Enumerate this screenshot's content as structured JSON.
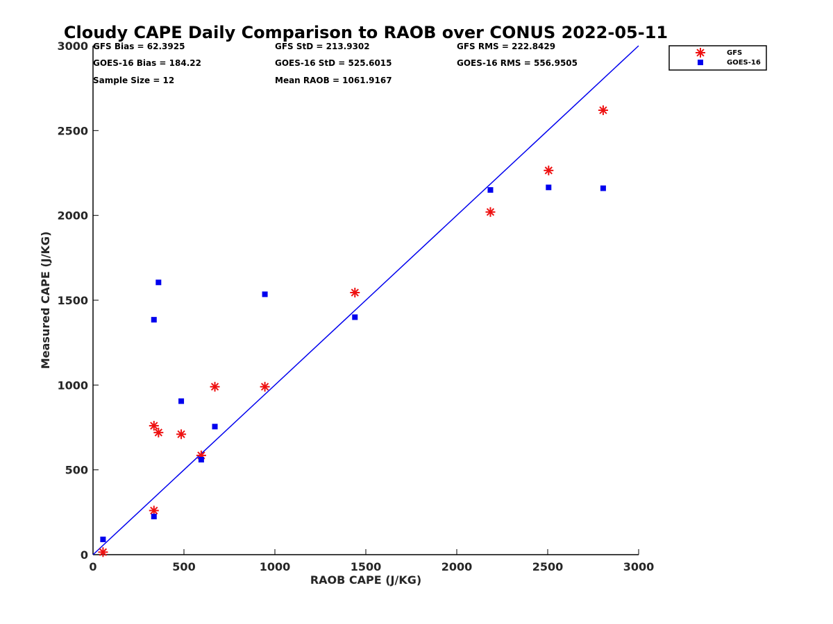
{
  "chart_data": {
    "type": "scatter",
    "title": "Cloudy CAPE Daily Comparison to RAOB over CONUS 2022-05-11",
    "xlabel": "RAOB CAPE (J/KG)",
    "ylabel": "Measured CAPE (J/KG)",
    "xlim": [
      0,
      3000
    ],
    "ylim": [
      0,
      3000
    ],
    "xticks": [
      0,
      500,
      1000,
      1500,
      2000,
      2500,
      3000
    ],
    "yticks": [
      0,
      500,
      1000,
      1500,
      2000,
      2500,
      3000
    ],
    "grid": false,
    "legend_position": "top-right outside",
    "stats": [
      [
        "GFS Bias = 62.3925",
        "GFS StD = 213.9302",
        "GFS RMS = 222.8429"
      ],
      [
        "GOES-16 Bias = 184.22",
        "GOES-16 StD = 525.6015",
        "GOES-16 RMS = 556.9505"
      ],
      [
        "Sample Size = 12",
        "Mean RAOB = 1061.9167",
        ""
      ]
    ],
    "reference_line": {
      "x": [
        0,
        3000
      ],
      "y": [
        0,
        3000
      ],
      "color": "#0000ee"
    },
    "series": [
      {
        "name": "GFS",
        "marker": "asterisk",
        "color": "#ee1111",
        "points": [
          [
            55,
            15
          ],
          [
            335,
            260
          ],
          [
            335,
            760
          ],
          [
            360,
            720
          ],
          [
            485,
            710
          ],
          [
            595,
            585
          ],
          [
            670,
            990
          ],
          [
            945,
            990
          ],
          [
            1440,
            1545
          ],
          [
            2185,
            2020
          ],
          [
            2505,
            2265
          ],
          [
            2805,
            2620
          ]
        ]
      },
      {
        "name": "GOES-16",
        "marker": "square",
        "color": "#0000ee",
        "points": [
          [
            55,
            90
          ],
          [
            335,
            225
          ],
          [
            335,
            1385
          ],
          [
            360,
            1605
          ],
          [
            485,
            905
          ],
          [
            595,
            560
          ],
          [
            670,
            755
          ],
          [
            945,
            1535
          ],
          [
            1440,
            1400
          ],
          [
            2185,
            2150
          ],
          [
            2505,
            2165
          ],
          [
            2805,
            2160
          ]
        ]
      }
    ]
  }
}
